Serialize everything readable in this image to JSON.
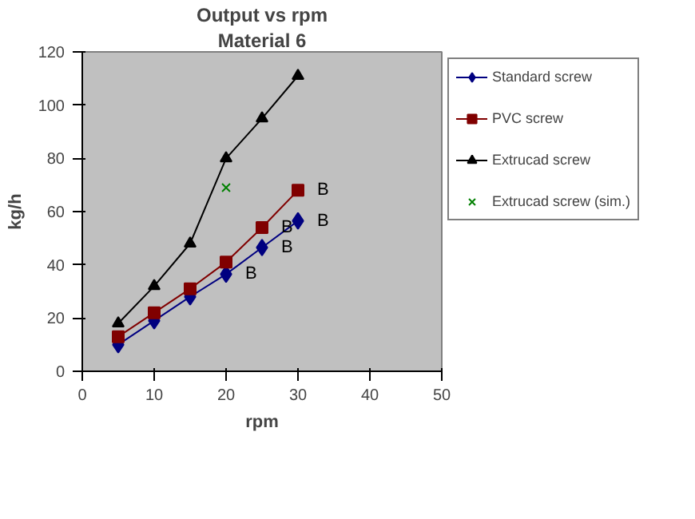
{
  "chart_data": {
    "type": "line",
    "title": "Output vs rpm",
    "subtitle": "Material 6",
    "xlabel": "rpm",
    "ylabel": "kg/h",
    "x": [
      5,
      10,
      15,
      20,
      25,
      30
    ],
    "series": [
      {
        "name": "Standard screw",
        "color": "#000080",
        "marker": "diamond",
        "values": [
          10,
          19,
          28,
          36.5,
          46.5,
          56.5
        ]
      },
      {
        "name": "PVC screw",
        "color": "#800000",
        "marker": "square",
        "values": [
          13,
          22,
          31,
          41,
          54,
          68
        ]
      },
      {
        "name": "Extrucad screw",
        "color": "#000000",
        "marker": "triangle",
        "values": [
          18,
          32,
          48,
          80,
          95,
          111
        ]
      },
      {
        "name": "Extrucad screw (sim.)",
        "color": "#008000",
        "marker": "cross",
        "x": [
          20
        ],
        "values": [
          69
        ]
      }
    ],
    "annotations": [
      {
        "text": "B",
        "x": 20,
        "y": 36.5
      },
      {
        "text": "B",
        "x": 25,
        "y": 46.5
      },
      {
        "text": "B",
        "x": 30,
        "y": 56.5
      },
      {
        "text": "B",
        "x": 25,
        "y": 54
      },
      {
        "text": "B",
        "x": 30,
        "y": 68
      }
    ],
    "xlim": [
      0,
      50
    ],
    "ylim": [
      0,
      120
    ],
    "xticks": [
      0,
      10,
      20,
      30,
      40,
      50
    ],
    "yticks": [
      0,
      20,
      40,
      60,
      80,
      100,
      120
    ],
    "grid": false,
    "legend": "right"
  }
}
